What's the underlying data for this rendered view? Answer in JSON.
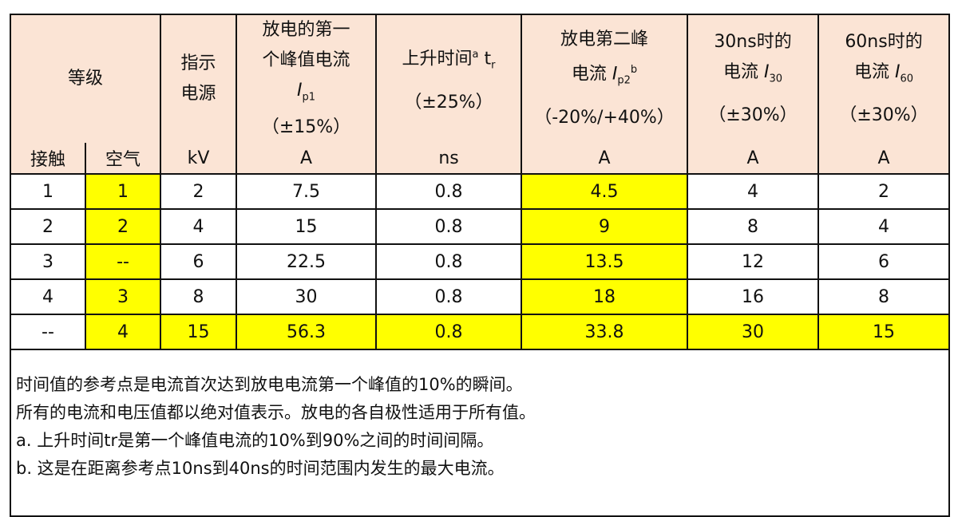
{
  "table": {
    "header": {
      "grade": "等级",
      "contact": "接触",
      "air": "空气",
      "voltage": {
        "lines": [
          "指示",
          "电源"
        ],
        "unit": "kV"
      },
      "peak1": {
        "lines": [
          "放电的第一",
          "个峰值电流"
        ],
        "symbol": "I",
        "sub": "p1",
        "tolerance": "（±15%）",
        "unit": "A"
      },
      "rise": {
        "text": "上升时间",
        "sup": "a",
        "symbol": "t",
        "sub": "r",
        "tolerance": "（±25%）",
        "unit": "ns"
      },
      "peak2": {
        "lines": [
          "放电第二峰",
          "电流"
        ],
        "symbol": "I",
        "sub": "p2",
        "sup": "b",
        "tolerance": "（-20%/+40%）",
        "unit": "A"
      },
      "i30": {
        "lines": [
          "30ns时的",
          "电流"
        ],
        "symbol": "I",
        "sub": "30",
        "tolerance": "（±30%）",
        "unit": "A"
      },
      "i60": {
        "lines": [
          "60ns时的",
          "电流"
        ],
        "symbol": "I",
        "sub": "60",
        "tolerance": "（±30%）",
        "unit": "A"
      }
    },
    "rows": [
      [
        "1",
        "1",
        "2",
        "7.5",
        "0.8",
        "4.5",
        "4",
        "2"
      ],
      [
        "2",
        "2",
        "4",
        "15",
        "0.8",
        "9",
        "8",
        "4"
      ],
      [
        "3",
        "--",
        "6",
        "22.5",
        "0.8",
        "13.5",
        "12",
        "6"
      ],
      [
        "4",
        "3",
        "8",
        "30",
        "0.8",
        "18",
        "16",
        "8"
      ],
      [
        "--",
        "4",
        "15",
        "56.3",
        "0.8",
        "33.8",
        "30",
        "15"
      ]
    ],
    "notes": [
      "时间值的参考点是电流首次达到放电电流第一个峰值的10%的瞬间。",
      "所有的电流和电压值都以绝对值表示。放电的各自极性适用于所有值。",
      "a.  上升时间tr是第一个峰值电流的10%到90%之间的时间间隔。",
      "b.  这是在距离参考点10ns到40ns的时间范围内发生的最大电流。"
    ]
  }
}
